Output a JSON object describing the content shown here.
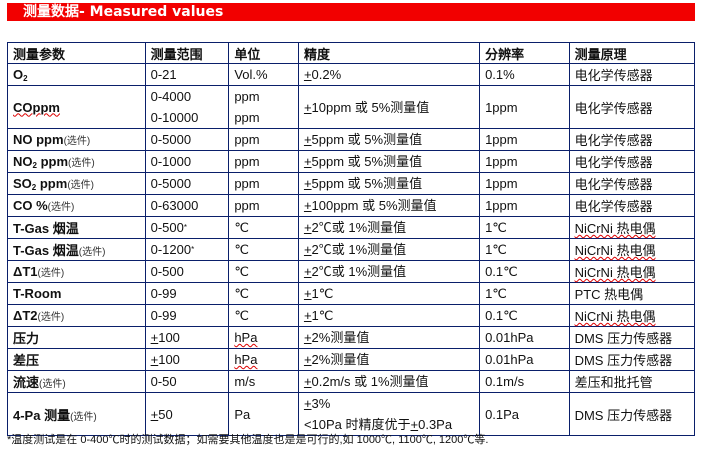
{
  "title": "测量数据- Measured values",
  "headers": [
    "测量参数",
    "测量范围",
    "单位",
    "精度",
    "分辨率",
    "测量原理"
  ],
  "rows": [
    {
      "param": {
        "main": "O",
        "sub": "2",
        "rest": "",
        "note": ""
      },
      "range": [
        {
          "pm": "",
          "v": "0-21",
          "star": ""
        }
      ],
      "unit": [
        "Vol.%"
      ],
      "precision": [
        {
          "before": "",
          "pm": "+",
          "after": "0.2%"
        }
      ],
      "resolution": "0.1%",
      "principle": "电化学传感器"
    },
    {
      "param": {
        "main": "COppm",
        "sub": "",
        "rest": "",
        "note": ""
      },
      "range": [
        {
          "pm": "",
          "v": "0-4000",
          "star": ""
        },
        {
          "pm": "",
          "v": "0-10000",
          "star": ""
        }
      ],
      "unit": [
        "ppm",
        "ppm"
      ],
      "precision": [
        {
          "before": "",
          "pm": "+",
          "after": "10ppm 或 5%测量值"
        }
      ],
      "resolution": "1ppm",
      "principle": "电化学传感器"
    },
    {
      "param": {
        "main": "NO ppm",
        "sub": "",
        "rest": "",
        "note": "(选件)"
      },
      "range": [
        {
          "pm": "",
          "v": "0-5000",
          "star": ""
        }
      ],
      "unit": [
        "ppm"
      ],
      "precision": [
        {
          "before": "",
          "pm": "+",
          "after": "5ppm 或 5%测量值"
        }
      ],
      "resolution": "1ppm",
      "principle": "电化学传感器"
    },
    {
      "param": {
        "main": "NO",
        "sub": "2",
        "rest": " ppm",
        "note": "(选件)"
      },
      "range": [
        {
          "pm": "",
          "v": "0-1000",
          "star": ""
        }
      ],
      "unit": [
        "ppm"
      ],
      "precision": [
        {
          "before": "",
          "pm": "+",
          "after": "5ppm 或 5%测量值"
        }
      ],
      "resolution": "1ppm",
      "principle": "电化学传感器"
    },
    {
      "param": {
        "main": "SO",
        "sub": "2",
        "rest": " ppm",
        "note": "(选件)"
      },
      "range": [
        {
          "pm": "",
          "v": "0-5000",
          "star": ""
        }
      ],
      "unit": [
        "ppm"
      ],
      "precision": [
        {
          "before": "",
          "pm": "+",
          "after": "5ppm 或 5%测量值"
        }
      ],
      "resolution": "1ppm",
      "principle": "电化学传感器"
    },
    {
      "param": {
        "main": "CO %",
        "sub": "",
        "rest": "",
        "note": "(选件)"
      },
      "range": [
        {
          "pm": "",
          "v": "0-63000",
          "star": ""
        }
      ],
      "unit": [
        "ppm"
      ],
      "precision": [
        {
          "before": "",
          "pm": "+",
          "after": "100ppm 或 5%测量值"
        }
      ],
      "resolution": "1ppm",
      "principle": "电化学传感器"
    },
    {
      "param": {
        "main": "T-Gas 烟温",
        "sub": "",
        "rest": "",
        "note": ""
      },
      "range": [
        {
          "pm": "",
          "v": "0-500",
          "star": "*"
        }
      ],
      "unit": [
        "℃"
      ],
      "precision": [
        {
          "before": "",
          "pm": "+",
          "after": "2℃或 1%测量值"
        }
      ],
      "resolution": "1℃",
      "principle": "NiCrNi 热电偶"
    },
    {
      "param": {
        "main": "T-Gas 烟温",
        "sub": "",
        "rest": "",
        "note": "(选件)"
      },
      "range": [
        {
          "pm": "",
          "v": "0-1200",
          "star": "*"
        }
      ],
      "unit": [
        "℃"
      ],
      "precision": [
        {
          "before": "",
          "pm": "+",
          "after": "2℃或 1%测量值"
        }
      ],
      "resolution": "1℃",
      "principle": "NiCrNi 热电偶"
    },
    {
      "param": {
        "main": "ΔT1",
        "sub": "",
        "rest": "",
        "note": "(选件)"
      },
      "range": [
        {
          "pm": "",
          "v": "0-500",
          "star": ""
        }
      ],
      "unit": [
        "℃"
      ],
      "precision": [
        {
          "before": "",
          "pm": "+",
          "after": "2℃或 1%测量值"
        }
      ],
      "resolution": "0.1℃",
      "principle": "NiCrNi 热电偶"
    },
    {
      "param": {
        "main": "T-Room",
        "sub": "",
        "rest": "",
        "note": ""
      },
      "range": [
        {
          "pm": "",
          "v": "0-99",
          "star": ""
        }
      ],
      "unit": [
        "℃"
      ],
      "precision": [
        {
          "before": "",
          "pm": "+",
          "after": "1℃"
        }
      ],
      "resolution": "1℃",
      "principle": "PTC 热电偶"
    },
    {
      "param": {
        "main": "ΔT2",
        "sub": "",
        "rest": "",
        "note": "(选件)"
      },
      "range": [
        {
          "pm": "",
          "v": "0-99",
          "star": ""
        }
      ],
      "unit": [
        "℃"
      ],
      "precision": [
        {
          "before": "",
          "pm": "+",
          "after": "1℃"
        }
      ],
      "resolution": "0.1℃",
      "principle": "NiCrNi 热电偶"
    },
    {
      "param": {
        "main": "压力",
        "sub": "",
        "rest": "",
        "note": ""
      },
      "range": [
        {
          "pm": "+",
          "v": "100",
          "star": ""
        }
      ],
      "unit": [
        "hPa"
      ],
      "precision": [
        {
          "before": "",
          "pm": "+",
          "after": "2%测量值"
        }
      ],
      "resolution": "0.01hPa",
      "principle": "DMS 压力传感器"
    },
    {
      "param": {
        "main": "差压",
        "sub": "",
        "rest": "",
        "note": ""
      },
      "range": [
        {
          "pm": "+",
          "v": "100",
          "star": ""
        }
      ],
      "unit": [
        "hPa"
      ],
      "precision": [
        {
          "before": "",
          "pm": "+",
          "after": "2%测量值"
        }
      ],
      "resolution": "0.01hPa",
      "principle": "DMS 压力传感器"
    },
    {
      "param": {
        "main": "流速",
        "sub": "",
        "rest": "",
        "note": "(选件)"
      },
      "range": [
        {
          "pm": "",
          "v": "0-50",
          "star": ""
        }
      ],
      "unit": [
        "m/s"
      ],
      "precision": [
        {
          "before": "",
          "pm": "+",
          "after": "0.2m/s 或 1%测量值"
        }
      ],
      "resolution": "0.1m/s",
      "principle": "差压和批托管"
    },
    {
      "param": {
        "main": "4-Pa 测量",
        "sub": "",
        "rest": "",
        "note": "(选件)"
      },
      "range": [
        {
          "pm": "+",
          "v": "50",
          "star": ""
        }
      ],
      "unit": [
        "Pa"
      ],
      "precision": [
        {
          "before": "",
          "pm": "+",
          "after": "3%"
        },
        {
          "before": "<10Pa 时精度优于",
          "pm": "+",
          "after": "0.3Pa"
        }
      ],
      "resolution": "0.1Pa",
      "principle": "DMS 压力传感器"
    }
  ],
  "footnote": "*温度测试是在 0-400℃时的测试数据；如需要其他温度也是是可行的,如 1000℃, 1100℃, 1200℃等."
}
